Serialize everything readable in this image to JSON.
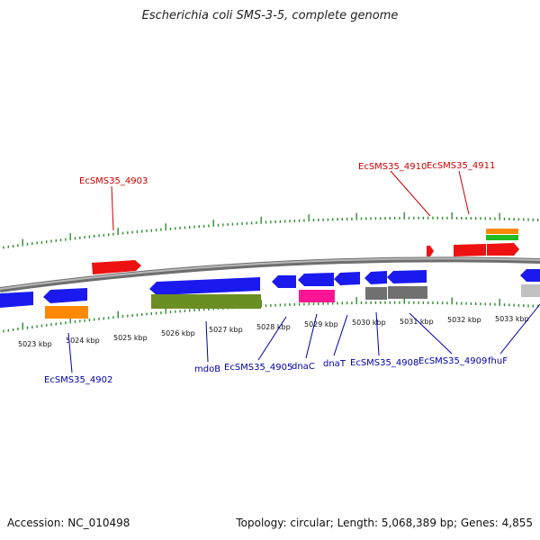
{
  "title": "Escherichia coli SMS-3-5, complete genome",
  "footer": {
    "accession": "Accession: NC_010498",
    "stats": "Topology: circular; Length: 5,068,389 bp; Genes: 4,855"
  },
  "colors": {
    "backbone": "#888888",
    "tick": "#2e8b2e",
    "label_forward": "#cc0000",
    "label_reverse": "#0000aa",
    "blue_gene": "#1a1aee",
    "red_gene": "#ee1111",
    "orange": "#ff8800",
    "olive": "#6b8e23",
    "magenta": "#ff1493",
    "gray": "#707070",
    "light_gray": "#c0c0c0",
    "green": "#22bb22"
  },
  "kbp_labels": [
    "5023 kbp",
    "5024 kbp",
    "5025 kbp",
    "5026 kbp",
    "5027 kbp",
    "5028 kbp",
    "5029 kbp",
    "5030 kbp",
    "5031 kbp",
    "5032 kbp",
    "5033 kbp"
  ],
  "forward_labels": [
    "EcSMS35_4903",
    "EcSMS35_4910",
    "EcSMS35_4911"
  ],
  "reverse_labels": [
    "EcSMS35_4902",
    "mdoB",
    "EcSMS35_4905",
    "dnaC",
    "dnaT",
    "EcSMS35_4908",
    "EcSMS35_4909",
    "fhuF"
  ]
}
